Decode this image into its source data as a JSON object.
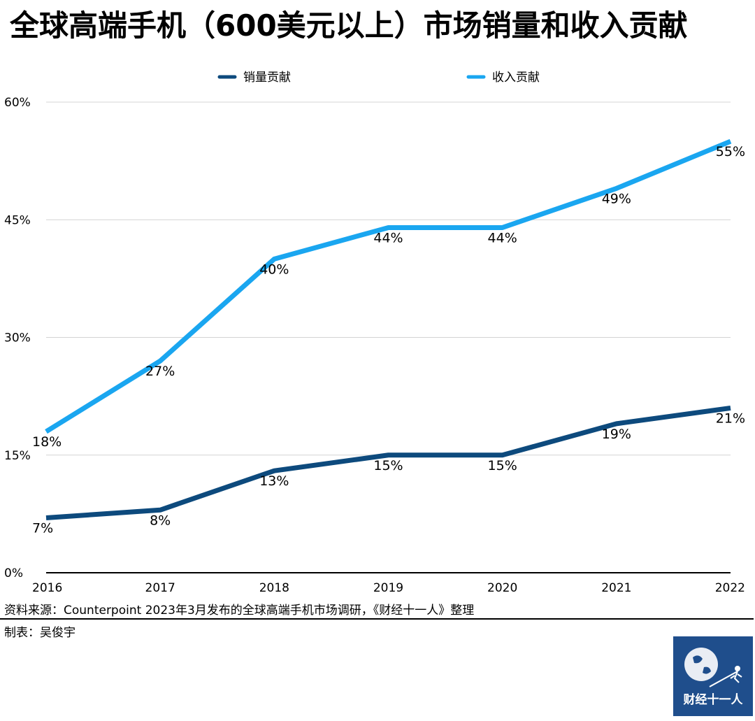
{
  "title": "全球高端手机（600美元以上）市场销量和收入贡献",
  "source_note": "资料来源：Counterpoint 2023年3月发布的全球高端手机市场调研，《财经十一人》整理",
  "maker_note": "制表：吴俊宇",
  "logo": {
    "text": "财经十一人",
    "bg": "#1f4e8c"
  },
  "chart_data": {
    "type": "line",
    "title": "",
    "xlabel": "",
    "ylabel": "",
    "x": [
      "2016",
      "2017",
      "2018",
      "2019",
      "2020",
      "2021",
      "2022"
    ],
    "ylim": [
      0,
      60
    ],
    "yticks": [
      0,
      15,
      30,
      45,
      60
    ],
    "ytick_labels": [
      "0%",
      "15%",
      "30%",
      "45%",
      "60%"
    ],
    "grid": true,
    "legend_position": "top",
    "series": [
      {
        "name": "销量贡献",
        "color": "#0d4a7d",
        "values": [
          7,
          8,
          13,
          15,
          15,
          19,
          21
        ],
        "labels": [
          "7%",
          "8%",
          "13%",
          "15%",
          "15%",
          "19%",
          "21%"
        ]
      },
      {
        "name": "收入贡献",
        "color": "#1aa6f0",
        "values": [
          18,
          27,
          40,
          44,
          44,
          49,
          55
        ],
        "labels": [
          "18%",
          "27%",
          "40%",
          "44%",
          "44%",
          "49%",
          "55%"
        ]
      }
    ]
  }
}
